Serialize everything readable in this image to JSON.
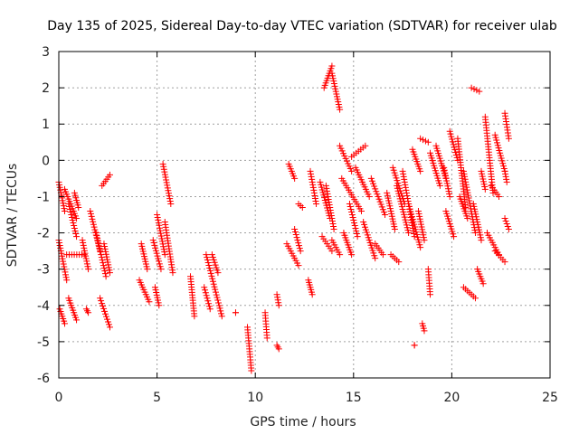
{
  "chart_data": {
    "type": "scatter",
    "title": "Day 135 of 2025, Sidereal Day-to-day VTEC variation (SDTVAR) for receiver ulab",
    "xlabel": "GPS time / hours",
    "ylabel": "SDTVAR / TECUs",
    "xlim": [
      0,
      25
    ],
    "ylim": [
      -6,
      3
    ],
    "xticks": [
      "0",
      "5",
      "10",
      "15",
      "20",
      "25"
    ],
    "yticks": [
      "-6",
      "-5",
      "-4",
      "-3",
      "-2",
      "-1",
      "0",
      "1",
      "2",
      "3"
    ],
    "grid": true,
    "marker": "+",
    "color": "#ff0000",
    "series": [
      {
        "name": "ulab",
        "segments": [
          {
            "x0": 0.0,
            "x1": 0.3,
            "y0": -0.6,
            "y1": -1.4
          },
          {
            "x0": 0.0,
            "x1": 0.4,
            "y0": -2.2,
            "y1": -3.3
          },
          {
            "x0": 0.05,
            "x1": 0.3,
            "y0": -4.1,
            "y1": -4.5
          },
          {
            "x0": 0.3,
            "x1": 0.9,
            "y0": -0.8,
            "y1": -1.6
          },
          {
            "x0": 0.5,
            "x1": 0.9,
            "y0": -1.2,
            "y1": -2.1
          },
          {
            "x0": 0.4,
            "x1": 1.3,
            "y0": -2.6,
            "y1": -2.6
          },
          {
            "x0": 0.5,
            "x1": 0.9,
            "y0": -3.8,
            "y1": -4.4
          },
          {
            "x0": 0.8,
            "x1": 1.0,
            "y0": -0.9,
            "y1": -1.3
          },
          {
            "x0": 1.2,
            "x1": 1.5,
            "y0": -2.2,
            "y1": -3.0
          },
          {
            "x0": 1.4,
            "x1": 1.5,
            "y0": -4.1,
            "y1": -4.2
          },
          {
            "x0": 1.6,
            "x1": 2.1,
            "y0": -1.4,
            "y1": -2.5
          },
          {
            "x0": 1.9,
            "x1": 2.4,
            "y0": -2.0,
            "y1": -3.2
          },
          {
            "x0": 2.1,
            "x1": 2.6,
            "y0": -3.8,
            "y1": -4.6
          },
          {
            "x0": 2.2,
            "x1": 2.6,
            "y0": -0.7,
            "y1": -0.4
          },
          {
            "x0": 2.3,
            "x1": 2.6,
            "y0": -2.3,
            "y1": -3.1
          },
          {
            "x0": 4.2,
            "x1": 4.5,
            "y0": -2.3,
            "y1": -3.0
          },
          {
            "x0": 4.1,
            "x1": 4.6,
            "y0": -3.3,
            "y1": -3.9
          },
          {
            "x0": 4.8,
            "x1": 5.2,
            "y0": -2.2,
            "y1": -3.0
          },
          {
            "x0": 4.9,
            "x1": 5.1,
            "y0": -3.5,
            "y1": -4.0
          },
          {
            "x0": 5.0,
            "x1": 5.4,
            "y0": -1.5,
            "y1": -2.6
          },
          {
            "x0": 5.3,
            "x1": 5.7,
            "y0": -0.1,
            "y1": -1.2
          },
          {
            "x0": 5.4,
            "x1": 5.8,
            "y0": -1.7,
            "y1": -3.1
          },
          {
            "x0": 6.7,
            "x1": 6.9,
            "y0": -3.2,
            "y1": -4.3
          },
          {
            "x0": 7.4,
            "x1": 7.7,
            "y0": -3.5,
            "y1": -4.1
          },
          {
            "x0": 7.5,
            "x1": 8.3,
            "y0": -2.6,
            "y1": -4.3
          },
          {
            "x0": 7.8,
            "x1": 8.1,
            "y0": -2.6,
            "y1": -3.1
          },
          {
            "x0": 9.0,
            "x1": 9.0,
            "y0": -4.2,
            "y1": -4.2
          },
          {
            "x0": 9.6,
            "x1": 9.8,
            "y0": -4.6,
            "y1": -5.8
          },
          {
            "x0": 10.5,
            "x1": 10.6,
            "y0": -4.2,
            "y1": -4.9
          },
          {
            "x0": 11.1,
            "x1": 11.2,
            "y0": -3.7,
            "y1": -4.0
          },
          {
            "x0": 11.1,
            "x1": 11.2,
            "y0": -5.1,
            "y1": -5.2
          },
          {
            "x0": 11.7,
            "x1": 12.0,
            "y0": -0.1,
            "y1": -0.5
          },
          {
            "x0": 11.6,
            "x1": 12.2,
            "y0": -2.3,
            "y1": -2.9
          },
          {
            "x0": 12.0,
            "x1": 12.3,
            "y0": -1.9,
            "y1": -2.5
          },
          {
            "x0": 12.2,
            "x1": 12.4,
            "y0": -1.2,
            "y1": -1.3
          },
          {
            "x0": 12.7,
            "x1": 12.9,
            "y0": -3.3,
            "y1": -3.7
          },
          {
            "x0": 12.8,
            "x1": 13.1,
            "y0": -0.3,
            "y1": -1.2
          },
          {
            "x0": 13.3,
            "x1": 13.8,
            "y0": -0.6,
            "y1": -1.6
          },
          {
            "x0": 13.4,
            "x1": 13.9,
            "y0": -2.1,
            "y1": -2.5
          },
          {
            "x0": 13.5,
            "x1": 13.9,
            "y0": 2.0,
            "y1": 2.6
          },
          {
            "x0": 13.6,
            "x1": 14.0,
            "y0": -0.7,
            "y1": -1.9
          },
          {
            "x0": 13.9,
            "x1": 14.3,
            "y0": 2.4,
            "y1": 1.4
          },
          {
            "x0": 13.9,
            "x1": 14.3,
            "y0": -2.2,
            "y1": -2.6
          },
          {
            "x0": 14.3,
            "x1": 14.9,
            "y0": 0.4,
            "y1": -0.3
          },
          {
            "x0": 14.4,
            "x1": 15.4,
            "y0": -0.5,
            "y1": -1.4
          },
          {
            "x0": 14.5,
            "x1": 14.9,
            "y0": -2.0,
            "y1": -2.6
          },
          {
            "x0": 14.8,
            "x1": 15.2,
            "y0": -1.2,
            "y1": -2.1
          },
          {
            "x0": 14.9,
            "x1": 15.6,
            "y0": 0.1,
            "y1": 0.4
          },
          {
            "x0": 15.1,
            "x1": 15.8,
            "y0": -0.2,
            "y1": -1.0
          },
          {
            "x0": 15.5,
            "x1": 16.1,
            "y0": -1.7,
            "y1": -2.7
          },
          {
            "x0": 15.9,
            "x1": 16.6,
            "y0": -0.5,
            "y1": -1.5
          },
          {
            "x0": 16.1,
            "x1": 16.5,
            "y0": -2.3,
            "y1": -2.6
          },
          {
            "x0": 16.7,
            "x1": 17.1,
            "y0": -0.9,
            "y1": -1.9
          },
          {
            "x0": 16.9,
            "x1": 17.3,
            "y0": -2.6,
            "y1": -2.8
          },
          {
            "x0": 17.0,
            "x1": 17.6,
            "y0": -0.2,
            "y1": -1.2
          },
          {
            "x0": 17.2,
            "x1": 17.8,
            "y0": -0.7,
            "y1": -2.0
          },
          {
            "x0": 17.5,
            "x1": 18.1,
            "y0": -0.3,
            "y1": -2.1
          },
          {
            "x0": 17.8,
            "x1": 18.4,
            "y0": -1.2,
            "y1": -2.4
          },
          {
            "x0": 18.0,
            "x1": 18.4,
            "y0": 0.3,
            "y1": -0.3
          },
          {
            "x0": 18.1,
            "x1": 18.1,
            "y0": -5.1,
            "y1": -5.1
          },
          {
            "x0": 18.3,
            "x1": 18.6,
            "y0": -1.4,
            "y1": -2.2
          },
          {
            "x0": 18.4,
            "x1": 18.8,
            "y0": 0.6,
            "y1": 0.5
          },
          {
            "x0": 18.5,
            "x1": 18.6,
            "y0": -4.5,
            "y1": -4.7
          },
          {
            "x0": 18.8,
            "x1": 18.9,
            "y0": -3.0,
            "y1": -3.7
          },
          {
            "x0": 18.9,
            "x1": 19.4,
            "y0": 0.2,
            "y1": -0.7
          },
          {
            "x0": 19.2,
            "x1": 19.7,
            "y0": 0.4,
            "y1": -0.5
          },
          {
            "x0": 19.6,
            "x1": 19.9,
            "y0": -0.2,
            "y1": -1.0
          },
          {
            "x0": 19.7,
            "x1": 20.1,
            "y0": -1.4,
            "y1": -2.1
          },
          {
            "x0": 19.9,
            "x1": 20.3,
            "y0": 0.8,
            "y1": 0.0
          },
          {
            "x0": 20.3,
            "x1": 20.7,
            "y0": 0.6,
            "y1": -1.3
          },
          {
            "x0": 20.4,
            "x1": 20.8,
            "y0": -1.0,
            "y1": -1.6
          },
          {
            "x0": 20.6,
            "x1": 21.2,
            "y0": -0.3,
            "y1": -2.0
          },
          {
            "x0": 20.6,
            "x1": 21.2,
            "y0": -3.5,
            "y1": -3.8
          },
          {
            "x0": 21.0,
            "x1": 21.4,
            "y0": 2.0,
            "y1": 1.9
          },
          {
            "x0": 21.1,
            "x1": 21.5,
            "y0": -1.2,
            "y1": -2.2
          },
          {
            "x0": 21.3,
            "x1": 21.6,
            "y0": -3.0,
            "y1": -3.4
          },
          {
            "x0": 21.5,
            "x1": 21.7,
            "y0": -0.3,
            "y1": -0.8
          },
          {
            "x0": 21.7,
            "x1": 22.1,
            "y0": 1.2,
            "y1": -0.9
          },
          {
            "x0": 21.8,
            "x1": 22.4,
            "y0": -2.0,
            "y1": -2.6
          },
          {
            "x0": 22.0,
            "x1": 22.4,
            "y0": -0.7,
            "y1": -1.0
          },
          {
            "x0": 22.2,
            "x1": 22.7,
            "y0": 0.7,
            "y1": -0.3
          },
          {
            "x0": 22.2,
            "x1": 22.7,
            "y0": -2.5,
            "y1": -2.8
          },
          {
            "x0": 22.7,
            "x1": 22.9,
            "y0": 1.3,
            "y1": 0.6
          },
          {
            "x0": 22.7,
            "x1": 22.8,
            "y0": -0.3,
            "y1": -0.6
          },
          {
            "x0": 22.7,
            "x1": 22.9,
            "y0": -1.6,
            "y1": -1.9
          }
        ]
      }
    ]
  }
}
